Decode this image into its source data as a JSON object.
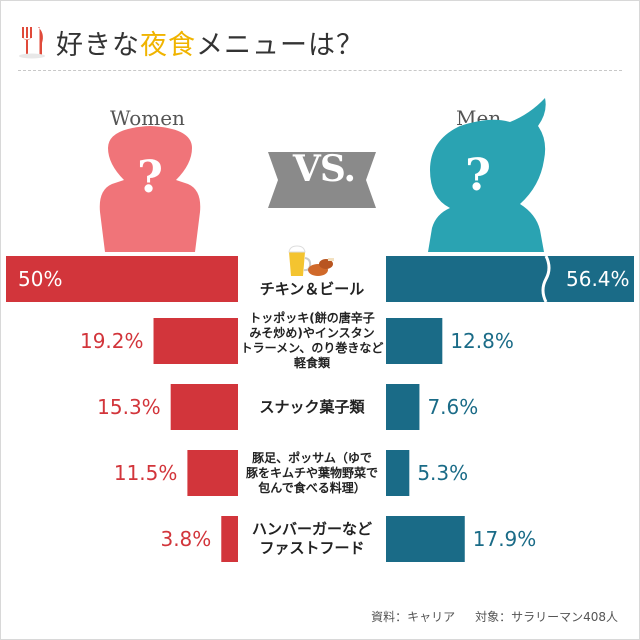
{
  "title": {
    "pre": "好きな",
    "highlight": "夜食",
    "post": "メニューは？"
  },
  "labels": {
    "women": "Women",
    "men": "Men",
    "vs": "VS."
  },
  "source": {
    "data_source": "資料：キャリア",
    "target": "対象：サラリーマン408人"
  },
  "colors": {
    "women": "#d2353b",
    "men": "#1a6b87",
    "women_figure": "#f07479",
    "men_figure": "#2aa3b2",
    "title_highlight": "#f0b400"
  },
  "icons": [
    "fork-knife-icon",
    "beer-chicken-icon",
    "women-silhouette-icon",
    "men-silhouette-icon"
  ],
  "chart_data": {
    "type": "bar",
    "layout": "back-to-back horizontal",
    "categories": [
      "チキン＆ビール",
      "トッポッキ（餅の唐辛子みそ炒め）やインスタントラーメン、のり巻きなど軽食類",
      "スナック菓子類",
      "豚足、ポッサム（ゆで豚をキムチや葉物野菜で包んで食べる料理）",
      "ハンバーガーなどファストフード"
    ],
    "category_lines": [
      [
        "チキン＆ビール"
      ],
      [
        "トッポッキ(餅の唐辛子",
        "みそ炒め)やインスタン",
        "トラーメン、のり巻きなど",
        "軽食類"
      ],
      [
        "スナック菓子類"
      ],
      [
        "豚足、ポッサム（ゆで",
        "豚をキムチや葉物野菜で",
        "包んで食べる料理）"
      ],
      [
        "ハンバーガーなど",
        "ファストフード"
      ]
    ],
    "series": [
      {
        "name": "Women",
        "values": [
          50,
          19.2,
          15.3,
          11.5,
          3.8
        ],
        "labels": [
          "50%",
          "19.2%",
          "15.3%",
          "11.5%",
          "3.8%"
        ]
      },
      {
        "name": "Men",
        "values": [
          56.4,
          12.8,
          7.6,
          5.3,
          17.9
        ],
        "labels": [
          "56.4%",
          "12.8%",
          "7.6%",
          "5.3%",
          "17.9%"
        ]
      }
    ],
    "axis_break_on_first_row": true
  }
}
